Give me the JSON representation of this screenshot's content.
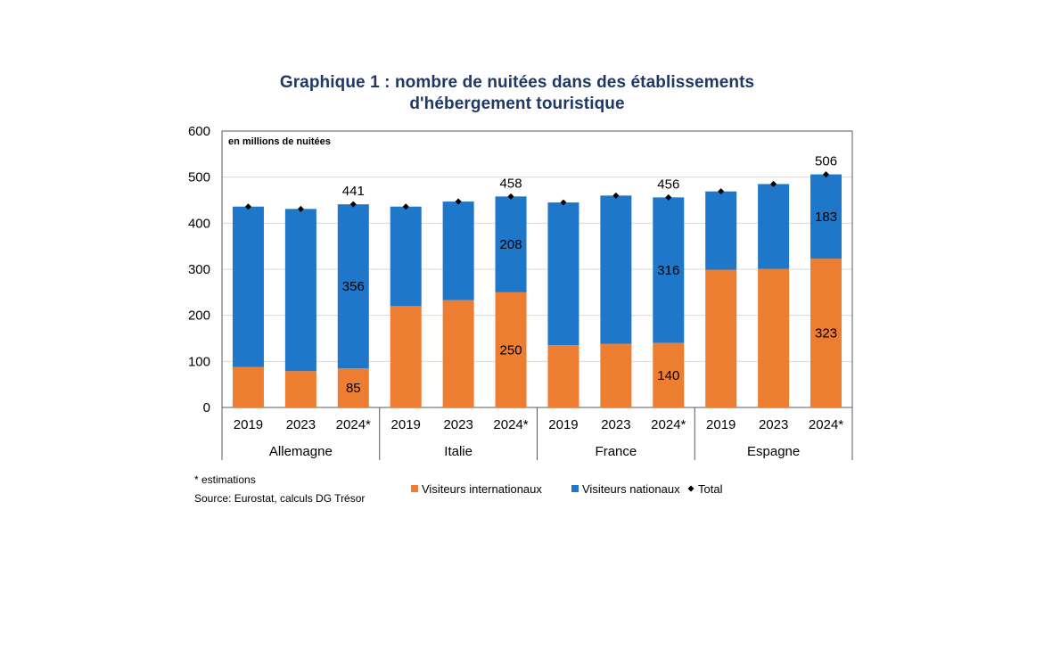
{
  "chart_data": {
    "type": "bar",
    "stacked": true,
    "title_lines": [
      "Graphique 1 : nombre de nuitées dans des établissements",
      "d'hébergement touristique"
    ],
    "ylabel_note": "en millions de nuitées",
    "ylim": [
      0,
      600
    ],
    "yticks": [
      0,
      100,
      200,
      300,
      400,
      500,
      600
    ],
    "groups": [
      {
        "name": "Allemagne",
        "years": [
          "2019",
          "2023",
          "2024*"
        ]
      },
      {
        "name": "Italie",
        "years": [
          "2019",
          "2023",
          "2024*"
        ]
      },
      {
        "name": "France",
        "years": [
          "2019",
          "2023",
          "2024*"
        ]
      },
      {
        "name": "Espagne",
        "years": [
          "2019",
          "2023",
          "2024*"
        ]
      }
    ],
    "series": [
      {
        "name": "Visiteurs internationaux",
        "color": "#ed7d31",
        "values": [
          88,
          79,
          85,
          220,
          233,
          250,
          135,
          138,
          140,
          299,
          301,
          323
        ]
      },
      {
        "name": "Visiteurs nationaux",
        "color": "#1f77c9",
        "values": [
          348,
          352,
          356,
          216,
          214,
          208,
          310,
          322,
          316,
          170,
          184,
          183
        ]
      }
    ],
    "totals": {
      "name": "Total",
      "color": "#000000",
      "values": [
        436,
        431,
        441,
        436,
        447,
        458,
        445,
        460,
        456,
        469,
        485,
        506
      ]
    },
    "data_labels": [
      {
        "index": 2,
        "total": "441",
        "international": "85",
        "national": "356"
      },
      {
        "index": 5,
        "total": "458",
        "international": "250",
        "national": "208"
      },
      {
        "index": 8,
        "total": "456",
        "international": "140",
        "national": "316"
      },
      {
        "index": 11,
        "total": "506",
        "international": "323",
        "national": "183"
      }
    ],
    "legend": [
      "Visiteurs internationaux",
      "Visiteurs nationaux",
      "Total"
    ],
    "footnotes": [
      "* estimations",
      "Source: Eurostat, calculs DG Trésor"
    ]
  }
}
